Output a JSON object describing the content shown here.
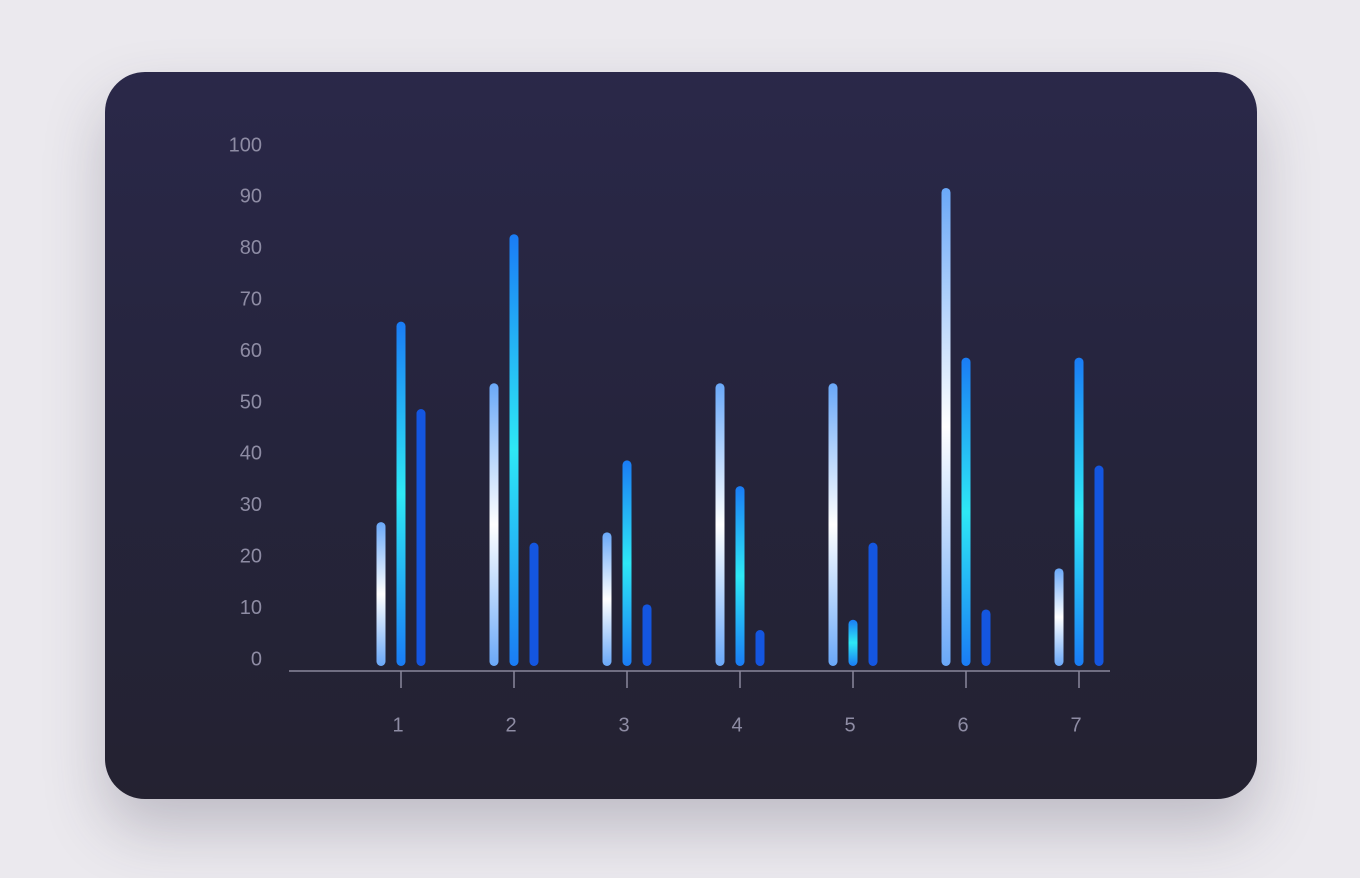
{
  "chart_data": {
    "type": "bar",
    "categories": [
      "1",
      "2",
      "3",
      "4",
      "5",
      "6",
      "7"
    ],
    "series": [
      {
        "color": "#6aa8f8",
        "values": [
          28,
          55,
          26,
          55,
          55,
          93,
          19
        ]
      },
      {
        "color": "#1a7cf5",
        "values": [
          67,
          84,
          40,
          35,
          9,
          60,
          60
        ]
      },
      {
        "color": "#1456e0",
        "values": [
          50,
          24,
          12,
          7,
          24,
          11,
          39
        ]
      }
    ],
    "ylim": [
      0,
      100
    ],
    "yticks": [
      0,
      10,
      20,
      30,
      40,
      50,
      60,
      70,
      80,
      90,
      100
    ],
    "grid": false
  }
}
